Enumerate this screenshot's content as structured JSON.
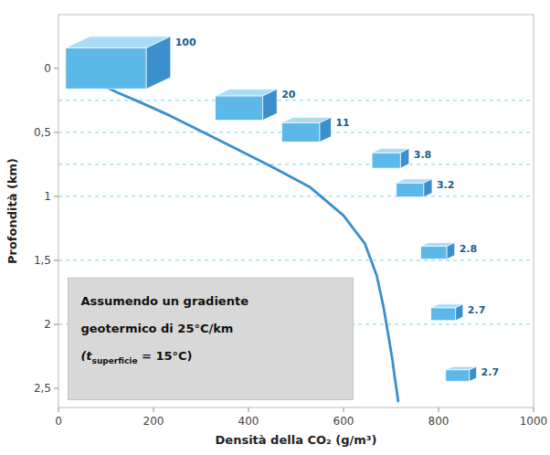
{
  "chart_data": {
    "type": "line",
    "xlabel": "Densità della CO₂ (g/m³)",
    "ylabel": "Profondità (km)",
    "xlim": [
      0,
      1000
    ],
    "ylim": [
      2.65,
      -0.42
    ],
    "xticks": [
      0,
      200,
      400,
      600,
      800,
      1000
    ],
    "yticks": [
      0,
      {
        "value": 0.5,
        "label": "0,5"
      },
      1,
      {
        "value": 1.5,
        "label": "1,5"
      },
      2,
      {
        "value": 2.5,
        "label": "2,5"
      }
    ],
    "grid": false,
    "series": [
      {
        "type": "line",
        "color": "#3a8fcc",
        "x": [
          20,
          35,
          55,
          85,
          125,
          175,
          235,
          300,
          370,
          450,
          530,
          600,
          645,
          670,
          685,
          695,
          703,
          708,
          712,
          715
        ],
        "values": [
          -0.08,
          0.0,
          0.06,
          0.12,
          0.19,
          0.27,
          0.37,
          0.49,
          0.62,
          0.77,
          0.93,
          1.15,
          1.37,
          1.62,
          1.88,
          2.1,
          2.28,
          2.42,
          2.52,
          2.6
        ]
      },
      {
        "type": "scatter",
        "marker": "cube",
        "color": "#5bb8e8",
        "top_color": "#aaddf5",
        "side_color": "#3a8fcc",
        "label_color": "#1a5f8a",
        "x": [
          100,
          380,
          510,
          690,
          740,
          790,
          810,
          840
        ],
        "values": [
          0.0,
          0.31,
          0.5,
          0.72,
          0.95,
          1.44,
          1.92,
          2.4
        ],
        "widths": [
          170,
          100,
          80,
          60,
          58,
          55,
          52,
          50
        ],
        "heights": [
          0.32,
          0.19,
          0.15,
          0.12,
          0.11,
          0.1,
          0.1,
          0.09
        ],
        "labels": [
          "100",
          "20",
          "11",
          "3.8",
          "3.2",
          "2.8",
          "2.7",
          "2.7"
        ]
      }
    ],
    "hlines": {
      "values": [
        0.25,
        0.5,
        0.75,
        1.0,
        1.5,
        2.0
      ],
      "color": "#7ecff0",
      "line_style": "dashed"
    },
    "annotation": {
      "color": "#d8d8d8",
      "lines": [
        "Assumendo un gradiente",
        "geotermico di 25°C/km"
      ],
      "last_line": [
        "(t",
        "superficie",
        " = 15°C)"
      ]
    }
  }
}
